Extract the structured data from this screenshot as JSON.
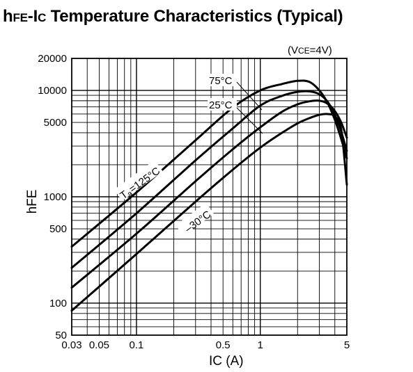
{
  "title": {
    "sym_main": "h",
    "sym_sub": "FE",
    "sep": "-I",
    "sym2_sub": "C",
    "rest": " Temperature Characteristics (Typical)"
  },
  "condition": {
    "open": "(V",
    "sub": "CE",
    "rest": "=4V)"
  },
  "chart_data": {
    "type": "line",
    "title": "hFE-IC Temperature Characteristics (Typical)",
    "xlabel": "IC (A)",
    "ylabel": "hFE",
    "xscale": "log",
    "yscale": "log",
    "xlim": [
      0.03,
      5
    ],
    "ylim": [
      50,
      20000
    ],
    "grid": true,
    "x_ticks": [
      {
        "value": 0.03,
        "label": "0.03"
      },
      {
        "value": 0.05,
        "label": "0.05"
      },
      {
        "value": 0.1,
        "label": "0.1"
      },
      {
        "value": 0.5,
        "label": "0.5"
      },
      {
        "value": 1,
        "label": "1"
      },
      {
        "value": 5,
        "label": "5"
      }
    ],
    "y_ticks": [
      {
        "value": 50,
        "label": "50"
      },
      {
        "value": 100,
        "label": "100"
      },
      {
        "value": 500,
        "label": "500"
      },
      {
        "value": 1000,
        "label": "1000"
      },
      {
        "value": 5000,
        "label": "5000"
      },
      {
        "value": 10000,
        "label": "10000"
      },
      {
        "value": 20000,
        "label": "20000"
      }
    ],
    "series": [
      {
        "name": "Ta=125°C",
        "label_main": "T",
        "label_sub": "a",
        "label_rest": "=125°C",
        "points": [
          [
            0.03,
            340
          ],
          [
            0.1,
            1100
          ],
          [
            0.3,
            3400
          ],
          [
            0.6,
            6900
          ],
          [
            1,
            10000
          ],
          [
            1.5,
            11500
          ],
          [
            2,
            12300
          ],
          [
            2.5,
            12000
          ],
          [
            3,
            10000
          ],
          [
            3.5,
            7600
          ],
          [
            4,
            5300
          ],
          [
            4.5,
            3500
          ],
          [
            5,
            2300
          ]
        ]
      },
      {
        "name": "75°C",
        "label_main": "75°C",
        "points": [
          [
            0.03,
            215
          ],
          [
            0.1,
            700
          ],
          [
            0.3,
            2200
          ],
          [
            0.6,
            4400
          ],
          [
            1,
            7200
          ],
          [
            1.5,
            8900
          ],
          [
            2,
            9700
          ],
          [
            2.5,
            9800
          ],
          [
            3,
            9200
          ],
          [
            3.5,
            7800
          ],
          [
            4,
            5900
          ],
          [
            4.5,
            4100
          ],
          [
            5,
            2700
          ]
        ]
      },
      {
        "name": "25°C",
        "label_main": "25°C",
        "points": [
          [
            0.03,
            140
          ],
          [
            0.1,
            450
          ],
          [
            0.3,
            1400
          ],
          [
            0.6,
            2800
          ],
          [
            1,
            4500
          ],
          [
            1.5,
            6300
          ],
          [
            2,
            7400
          ],
          [
            2.5,
            7900
          ],
          [
            3,
            8000
          ],
          [
            3.5,
            7500
          ],
          [
            4,
            6400
          ],
          [
            4.5,
            5000
          ],
          [
            5,
            3600
          ]
        ]
      },
      {
        "name": "-30°C",
        "label_main": "–30°C",
        "points": [
          [
            0.03,
            85
          ],
          [
            0.1,
            290
          ],
          [
            0.3,
            900
          ],
          [
            0.6,
            1800
          ],
          [
            1,
            2900
          ],
          [
            1.5,
            4000
          ],
          [
            2,
            4900
          ],
          [
            2.5,
            5500
          ],
          [
            3,
            5900
          ],
          [
            3.5,
            6000
          ],
          [
            4,
            5700
          ],
          [
            4.5,
            4300
          ],
          [
            5,
            1300
          ]
        ]
      }
    ]
  }
}
